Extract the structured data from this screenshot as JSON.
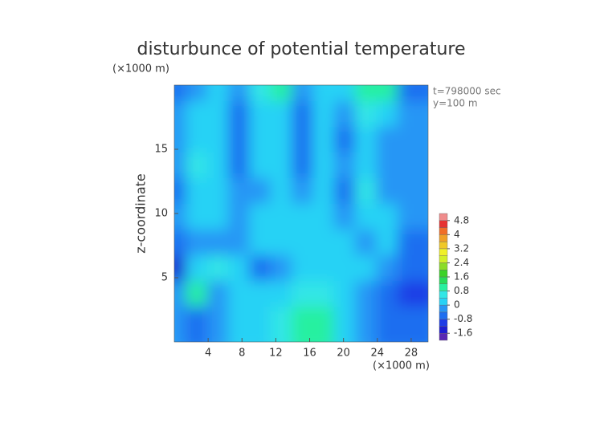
{
  "chart_data": {
    "type": "contour",
    "title": "disturbunce of potential temperature",
    "y_unit": "(×1000 m)",
    "x_unit": "(×1000 m)",
    "y_label": "z-coordinate",
    "annotations": [
      "t=798000 sec",
      "y=100 m"
    ],
    "xlim": [
      0,
      30
    ],
    "ylim": [
      0,
      20
    ],
    "xticks": [
      4,
      8,
      12,
      16,
      20,
      24,
      28
    ],
    "yticks": [
      5,
      10,
      15
    ],
    "x": [
      1.25,
      3.75,
      6.25,
      8.75,
      11.25,
      13.75,
      16.25,
      18.75,
      21.25,
      23.75,
      26.25,
      28.75
    ],
    "y": [
      19,
      17,
      15,
      13,
      11,
      9,
      7,
      5,
      3,
      1
    ],
    "z": [
      [
        -0.6,
        -0.3,
        0.2,
        -0.2,
        0.6,
        0.9,
        -0.3,
        0.1,
        0.2,
        0.9,
        1.0,
        -0.8
      ],
      [
        -0.3,
        0.1,
        0.3,
        -0.5,
        0.2,
        0.1,
        -0.5,
        0.3,
        -0.3,
        0.5,
        0.3,
        -0.4
      ],
      [
        -0.2,
        0.3,
        0.1,
        -0.6,
        0.3,
        0.2,
        -0.7,
        0.1,
        -0.5,
        0.2,
        -0.2,
        -0.3
      ],
      [
        -0.4,
        0.4,
        0.2,
        -0.7,
        0.1,
        0.0,
        -0.6,
        0.2,
        -0.4,
        0.3,
        -0.3,
        -0.2
      ],
      [
        -0.5,
        0.2,
        0.3,
        -0.2,
        -0.3,
        0.2,
        -0.4,
        0.3,
        -0.8,
        0.4,
        -0.2,
        -0.3
      ],
      [
        -0.3,
        0.1,
        0.2,
        -0.2,
        0.1,
        0.3,
        0.2,
        0.1,
        -0.4,
        0.3,
        0.1,
        -0.2
      ],
      [
        -0.6,
        -0.4,
        -0.3,
        -0.3,
        0.1,
        0.2,
        0.3,
        0.2,
        0.0,
        -0.1,
        0.1,
        -0.5
      ],
      [
        -1.4,
        0.3,
        0.5,
        0.2,
        -0.5,
        -0.3,
        0.3,
        0.2,
        0.3,
        0.1,
        -0.3,
        -0.6
      ],
      [
        -0.4,
        0.8,
        -0.2,
        0.1,
        0.2,
        0.3,
        0.5,
        0.4,
        0.2,
        -0.3,
        -0.8,
        -1.1
      ],
      [
        -0.4,
        -0.6,
        -0.3,
        0.2,
        0.3,
        0.4,
        0.9,
        1.0,
        0.3,
        -0.3,
        -0.7,
        -0.5
      ]
    ],
    "colorbar": {
      "levels": [
        -2.0,
        -1.6,
        -1.2,
        -0.8,
        -0.4,
        0,
        0.4,
        0.8,
        1.2,
        1.6,
        2.0,
        2.4,
        2.8,
        3.2,
        3.6,
        4.0,
        4.4,
        4.8,
        5.2
      ],
      "colors": [
        "#5a28b4",
        "#1e1ed2",
        "#1e3ce6",
        "#1e6ef0",
        "#2896f5",
        "#28d2f5",
        "#32e6e6",
        "#28f0a0",
        "#28dc5a",
        "#3cd228",
        "#8cdc28",
        "#d2f028",
        "#f0f028",
        "#f0c828",
        "#f0a028",
        "#f06e28",
        "#e63232",
        "#f08c8c"
      ],
      "ticks": [
        -1.6,
        -0.8,
        0,
        0.8,
        1.6,
        2.4,
        3.2,
        4,
        4.8
      ]
    }
  }
}
